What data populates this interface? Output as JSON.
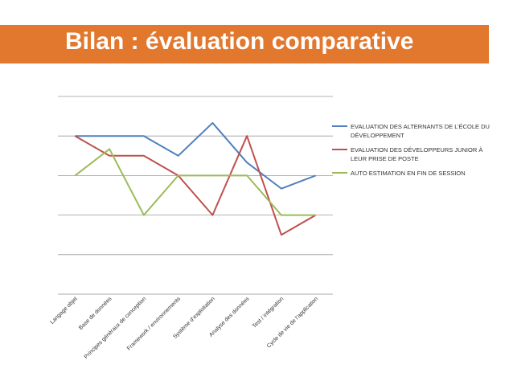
{
  "slide": {
    "title": "Bilan : évaluation comparative",
    "title_bar_color": "#E2772E"
  },
  "chart_data": {
    "type": "line",
    "categories": [
      "Langage objet",
      "Base de données",
      "Principes généraux de conception",
      "Framework / environnements",
      "Système d’exploitation",
      "Analyse des données",
      "Test / intégration",
      "Cycle de vie de l’application"
    ],
    "ylim": [
      0,
      5
    ],
    "grid": true,
    "legend_position": "right",
    "series": [
      {
        "name": "EVALUATION DES ALTERNANTS DE L’ÉCOLE DU DÉVELOPPEMENT",
        "legend_lines": [
          "EVALUATION DES ALTERNANTS DE L’ÉCOLE DU",
          "DÉVELOPPEMENT"
        ],
        "color": "#4F81BD",
        "values": [
          4,
          4,
          4,
          3.5,
          4.33,
          3.33,
          2.67,
          3
        ]
      },
      {
        "name": "EVALUATION DES DÉVELOPPEURS JUNIOR À LEUR PRISE DE POSTE",
        "legend_lines": [
          "EVALUATION DES DÉVELOPPEURS JUNIOR À",
          "LEUR PRISE DE POSTE"
        ],
        "color": "#C0504D",
        "values": [
          4,
          3.5,
          3.5,
          3,
          2,
          4,
          1.5,
          2
        ]
      },
      {
        "name": "AUTO ESTIMATION EN FIN DE SESSION",
        "legend_lines": [
          "AUTO ESTIMATION EN FIN DE SESSION"
        ],
        "color": "#9BBB59",
        "values": [
          3,
          3.67,
          2,
          3,
          3,
          3,
          2,
          2
        ]
      }
    ]
  }
}
